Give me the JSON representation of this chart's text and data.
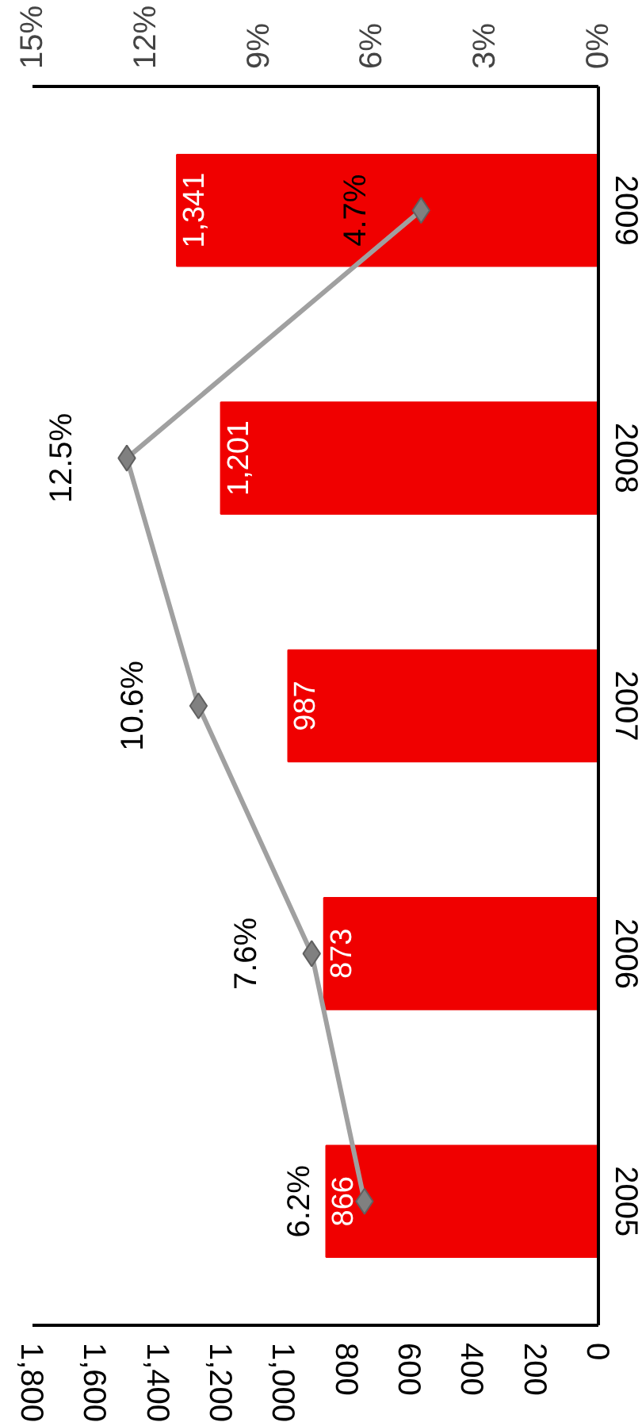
{
  "chart_data": {
    "type": "bar",
    "orientation": "horizontal",
    "categories": [
      "2009",
      "2008",
      "2007",
      "2006",
      "2005"
    ],
    "series": [
      {
        "color": "#f00000",
        "values": [
          1341,
          1201,
          987,
          873,
          866
        ],
        "value_labels": [
          "1,341",
          "1,201",
          "987",
          "873",
          "866"
        ]
      },
      {
        "type": "line",
        "axis": "x2",
        "color": "#a0a0a0",
        "marker": "diamond",
        "line_style": "solid",
        "values": [
          4.7,
          12.5,
          10.6,
          7.6,
          6.2
        ],
        "value_labels": [
          "4.7%",
          "12.5%",
          "10.6%",
          "7.6%",
          "6.2%"
        ]
      }
    ],
    "xlim": [
      1800,
      0
    ],
    "xticks": [
      {
        "value": 1800,
        "label": "1,800"
      },
      {
        "value": 1600,
        "label": "1,600"
      },
      {
        "value": 1400,
        "label": "1,400"
      },
      {
        "value": 1200,
        "label": "1,200"
      },
      {
        "value": 1000,
        "label": "1,000"
      },
      800,
      600,
      400,
      200,
      0
    ],
    "x2lim": [
      15,
      0
    ],
    "x2ticks": [
      {
        "value": 15,
        "label": "15%"
      },
      {
        "value": 12,
        "label": "12%"
      },
      {
        "value": 9,
        "label": "9%"
      },
      {
        "value": 6,
        "label": "6%"
      },
      {
        "value": 3,
        "label": "3%"
      },
      {
        "value": 0,
        "label": "0%"
      }
    ],
    "grid": false
  }
}
